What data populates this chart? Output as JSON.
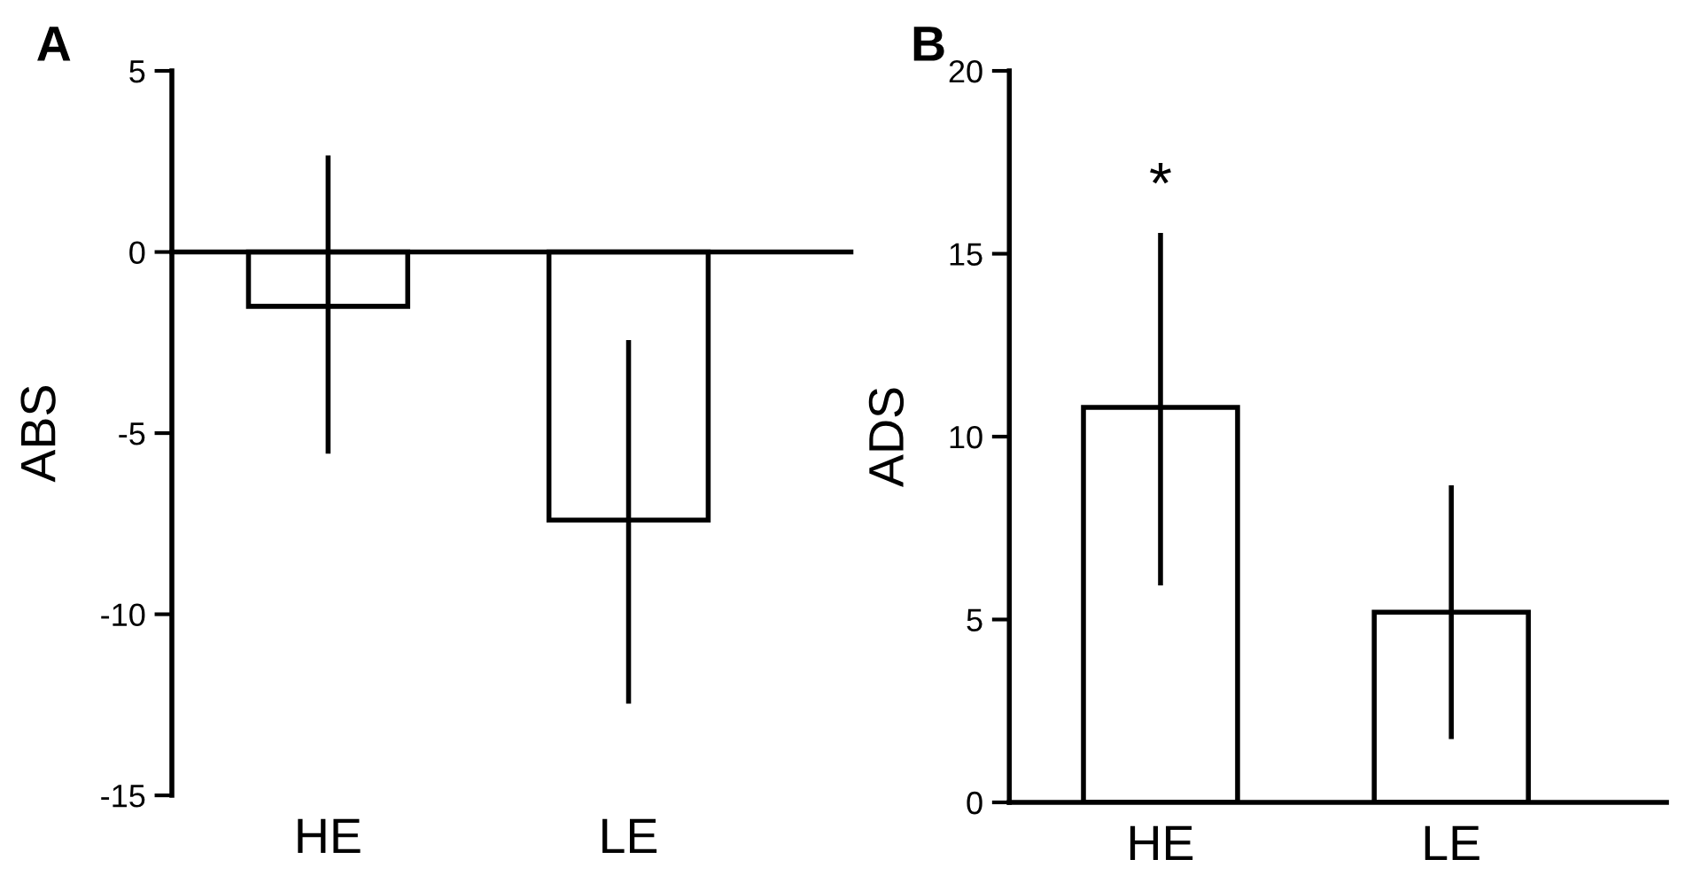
{
  "chart_data": [
    {
      "type": "bar",
      "title": "A",
      "ylabel": "ABS",
      "categories": [
        "HE",
        "LE"
      ],
      "values": [
        -1.5,
        -7.4
      ],
      "errors": [
        [
          -5.5,
          2.6
        ],
        [
          -12.4,
          -2.5
        ]
      ],
      "color": "#ffffff",
      "ylim": [
        -15,
        5
      ],
      "yticks": [
        -15,
        -10,
        -5,
        0,
        5
      ],
      "legend": false
    },
    {
      "type": "bar",
      "title": "B",
      "ylabel": "ADS",
      "categories": [
        "HE",
        "LE"
      ],
      "values": [
        10.8,
        5.2
      ],
      "errors": [
        [
          6.0,
          15.5
        ],
        [
          1.8,
          8.6
        ]
      ],
      "color": "#ffffff",
      "ylim": [
        0,
        20
      ],
      "yticks": [
        0,
        5,
        10,
        15,
        20
      ],
      "legend": false,
      "annotations": [
        "*"
      ]
    }
  ]
}
